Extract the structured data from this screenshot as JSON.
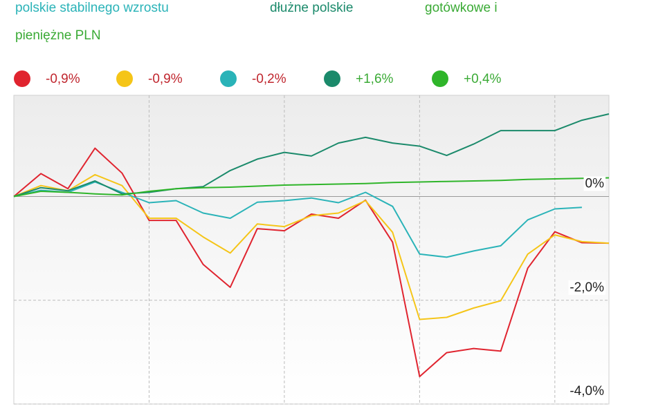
{
  "chart_data": {
    "type": "line",
    "headings": [
      {
        "text": "polskie stabilnego wzrostu",
        "color": "#2ab3b8"
      },
      {
        "text": "dłużne polskie",
        "color": "#1b8a6b"
      },
      {
        "text": "gotówkowe i",
        "color": "#3aaa35"
      },
      {
        "text": "pieniężne PLN",
        "color": "#3aaa35"
      }
    ],
    "categories": [
      null,
      null,
      null,
      null,
      null,
      null,
      null,
      null,
      null,
      null,
      null,
      null,
      null,
      null,
      null,
      null,
      null,
      null,
      null,
      null,
      null,
      null,
      null
    ],
    "ylim": [
      -4.0,
      1.95
    ],
    "yticks": [
      {
        "value": 0,
        "label": "0%"
      },
      {
        "value": -2,
        "label": "-2,0%"
      },
      {
        "value": -4,
        "label": "-4,0%"
      }
    ],
    "grid": true,
    "series": [
      {
        "label": "-0,9%",
        "color": "#e0242f",
        "label_color": "#c0262e",
        "values": [
          0,
          0.44,
          0.15,
          0.93,
          0.45,
          -0.46,
          -0.46,
          -1.31,
          -1.75,
          -0.62,
          -0.66,
          -0.34,
          -0.42,
          -0.07,
          -0.88,
          -3.47,
          -3.01,
          -2.93,
          -2.98,
          -1.38,
          -0.68,
          -0.89,
          -0.9
        ]
      },
      {
        "label": "-0,9%",
        "color": "#f5c518",
        "label_color": "#c0262e",
        "values": [
          0,
          0.21,
          0.11,
          0.42,
          0.21,
          -0.42,
          -0.42,
          -0.78,
          -1.09,
          -0.53,
          -0.58,
          -0.37,
          -0.32,
          -0.08,
          -0.69,
          -2.37,
          -2.33,
          -2.15,
          -2.01,
          -1.11,
          -0.74,
          -0.87,
          -0.9
        ]
      },
      {
        "label": "-0,2%",
        "color": "#2ab3b8",
        "label_color": "#c0262e",
        "values": [
          0,
          0.12,
          0.08,
          0.28,
          0.08,
          -0.12,
          -0.08,
          -0.32,
          -0.42,
          -0.11,
          -0.08,
          -0.03,
          -0.12,
          0.08,
          -0.19,
          -1.11,
          -1.17,
          -1.05,
          -0.95,
          -0.45,
          -0.24,
          -0.21,
          null
        ]
      },
      {
        "label": "+1,6%",
        "color": "#1b8a6b",
        "label_color": "#3aaa35",
        "values": [
          0,
          0.17,
          0.11,
          0.3,
          0.05,
          0.08,
          0.15,
          0.19,
          0.5,
          0.72,
          0.85,
          0.78,
          1.03,
          1.14,
          1.03,
          0.97,
          0.79,
          1.01,
          1.27,
          1.27,
          1.27,
          1.47,
          1.59
        ]
      },
      {
        "label": "+0,4%",
        "color": "#2fb52a",
        "label_color": "#3aaa35",
        "values": [
          0,
          0.1,
          0.08,
          0.05,
          0.03,
          0.1,
          0.15,
          0.17,
          0.18,
          0.2,
          0.22,
          0.23,
          0.24,
          0.25,
          0.27,
          0.28,
          0.29,
          0.3,
          0.31,
          0.33,
          0.34,
          0.35,
          0.36
        ]
      }
    ]
  }
}
